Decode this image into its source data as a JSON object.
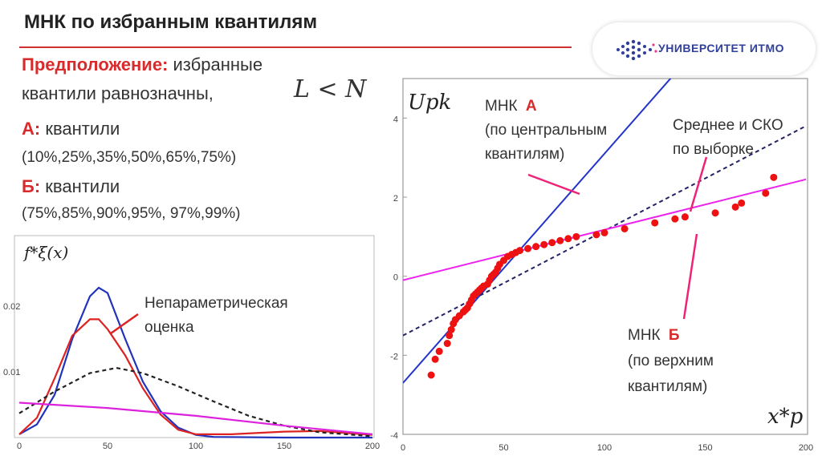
{
  "slide": {
    "title": "МНК по избранным квантилям",
    "logo": {
      "text": "УНИВЕРСИТЕТ ИТМО",
      "icon": "itmo-dots-logo-icon",
      "accent": "#2f3f9a"
    },
    "assumption": {
      "label": "Предположение:",
      "text1": "избранные",
      "text2": "квантили равнозначны,",
      "formula": "L < N"
    },
    "set_a": {
      "label": "А:",
      "text": "квантили",
      "values": "(10%,25%,35%,50%,65%,75%)"
    },
    "set_b": {
      "label": "Б:",
      "text": "квантили",
      "values": "(75%,85%,90%,95%, 97%,99%)"
    }
  },
  "left_chart": {
    "ylabel": "f*ξ(x)",
    "annotation": [
      "Непараметрическая",
      "оценка"
    ]
  },
  "right_chart": {
    "ylabel": "Upk",
    "xlabel": "x*p",
    "ann_a": {
      "line1_prefix": "МНК",
      "line1_red": "А",
      "line2": "(по центральным",
      "line3": "квантилям)"
    },
    "ann_mean": {
      "line1": "Среднее и СКО",
      "line2": "по выборке"
    },
    "ann_b": {
      "line1_prefix": "МНК",
      "line1_red": "Б",
      "line2": "(по верхним",
      "line3": "квантилям)"
    }
  },
  "chart_data": [
    {
      "type": "line",
      "xlim": [
        0,
        200
      ],
      "ylim": [
        0,
        0.03
      ],
      "x_ticks": [
        0,
        50,
        100,
        150,
        200
      ],
      "y_ticks": [
        0.01,
        0.02
      ],
      "y_tick_labels": [
        "0.01",
        "0.02"
      ],
      "series": [
        {
          "color": "#2233bb",
          "style": "solid",
          "x": [
            0,
            10,
            20,
            30,
            40,
            45,
            50,
            60,
            70,
            80,
            90,
            100,
            110,
            150,
            200
          ],
          "y": [
            0.0005,
            0.002,
            0.0065,
            0.015,
            0.0215,
            0.0228,
            0.022,
            0.015,
            0.0085,
            0.004,
            0.0015,
            0.0004,
            0.0001,
            0,
            0
          ]
        },
        {
          "color": "#dd2222",
          "style": "solid",
          "x": [
            0,
            10,
            20,
            30,
            40,
            45,
            50,
            60,
            70,
            80,
            90,
            100,
            120,
            150,
            170,
            190,
            200
          ],
          "y": [
            0.0005,
            0.003,
            0.009,
            0.0155,
            0.018,
            0.018,
            0.0165,
            0.0125,
            0.0075,
            0.0035,
            0.0012,
            0.0005,
            0.0005,
            0.0009,
            0.001,
            0.0006,
            0.0004
          ]
        },
        {
          "color": "#222222",
          "style": "dashed",
          "x": [
            0,
            20,
            40,
            55,
            70,
            90,
            110,
            130,
            150,
            170,
            200
          ],
          "y": [
            0.0037,
            0.007,
            0.0098,
            0.0106,
            0.0098,
            0.0078,
            0.0055,
            0.0033,
            0.0018,
            0.0008,
            0.0002
          ]
        },
        {
          "color": "#dd22dd",
          "style": "solid",
          "x": [
            0,
            50,
            100,
            150,
            200
          ],
          "y": [
            0.0053,
            0.0045,
            0.0033,
            0.0018,
            0.0005
          ]
        }
      ]
    },
    {
      "type": "scatter",
      "xlim": [
        0,
        200
      ],
      "ylim": [
        -4,
        5
      ],
      "x_ticks": [
        0,
        50,
        100,
        150,
        200
      ],
      "y_ticks": [
        -4,
        -2,
        0,
        2,
        4
      ],
      "lines": [
        {
          "color": "#2233cc",
          "style": "solid",
          "x": [
            0,
            150
          ],
          "y": [
            -2.7,
            6.0
          ]
        },
        {
          "color": "#222266",
          "style": "dashed",
          "x": [
            0,
            200
          ],
          "y": [
            -1.5,
            3.8
          ]
        },
        {
          "color": "#ee22ee",
          "style": "solid",
          "x": [
            0,
            200
          ],
          "y": [
            -0.1,
            2.45
          ]
        }
      ],
      "points": {
        "color": "#ee1111",
        "x": [
          14,
          16,
          18,
          22,
          23,
          24,
          25,
          26,
          28,
          30,
          31,
          32,
          33,
          34,
          35,
          36,
          37,
          38,
          39,
          40,
          42,
          43,
          44,
          45,
          46,
          47,
          48,
          50,
          52,
          54,
          56,
          58,
          62,
          66,
          70,
          74,
          78,
          82,
          86,
          96,
          100,
          110,
          125,
          135,
          140,
          155,
          165,
          168,
          180,
          184
        ],
        "y": [
          -2.5,
          -2.1,
          -1.9,
          -1.7,
          -1.5,
          -1.35,
          -1.2,
          -1.1,
          -1.0,
          -0.9,
          -0.85,
          -0.8,
          -0.7,
          -0.6,
          -0.5,
          -0.45,
          -0.4,
          -0.35,
          -0.3,
          -0.25,
          -0.2,
          -0.1,
          0.0,
          0.05,
          0.1,
          0.2,
          0.3,
          0.4,
          0.5,
          0.55,
          0.6,
          0.65,
          0.7,
          0.75,
          0.8,
          0.85,
          0.9,
          0.95,
          1.0,
          1.05,
          1.1,
          1.2,
          1.35,
          1.45,
          1.5,
          1.6,
          1.75,
          1.85,
          2.1,
          2.5
        ]
      }
    }
  ]
}
